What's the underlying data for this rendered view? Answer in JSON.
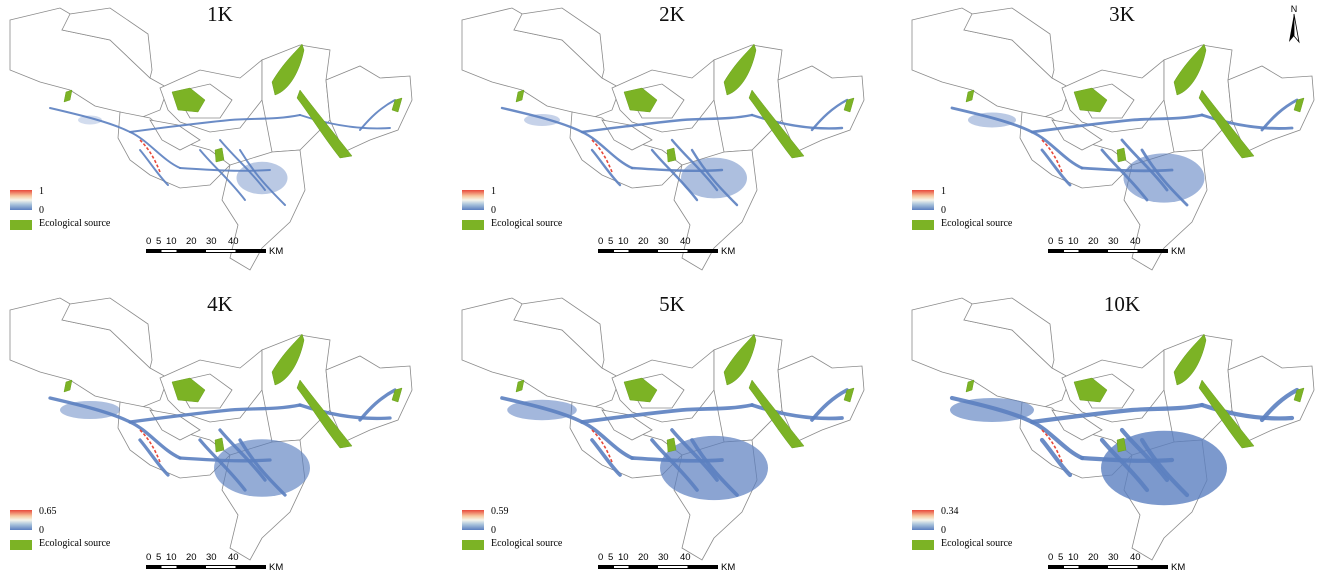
{
  "panels": [
    {
      "title": "1K",
      "legend": {
        "max": "1",
        "min": "0",
        "source": "Ecological source"
      },
      "spread": 0.15
    },
    {
      "title": "2K",
      "legend": {
        "max": "1",
        "min": "0",
        "source": "Ecological source"
      },
      "spread": 0.3
    },
    {
      "title": "3K",
      "legend": {
        "max": "1",
        "min": "0",
        "source": "Ecological source"
      },
      "spread": 0.45
    },
    {
      "title": "4K",
      "legend": {
        "max": "0.65",
        "min": "0",
        "source": "Ecological source"
      },
      "spread": 0.6
    },
    {
      "title": "5K",
      "legend": {
        "max": "0.59",
        "min": "0",
        "source": "Ecological source"
      },
      "spread": 0.72
    },
    {
      "title": "10K",
      "legend": {
        "max": "0.34",
        "min": "0",
        "source": "Ecological source"
      },
      "spread": 0.9
    }
  ],
  "scalebar": {
    "ticks": [
      "0",
      "5",
      "10",
      "20",
      "30",
      "40"
    ],
    "unit": "KM"
  },
  "north_arrow": {
    "label": "N"
  },
  "colors": {
    "ecological_source": "#7cb325",
    "corridor_low": "#5b7fc0",
    "corridor_high": "#e8483a",
    "boundary": "#8a8a8a"
  },
  "icons": {
    "north_arrow": "north-arrow-icon"
  }
}
